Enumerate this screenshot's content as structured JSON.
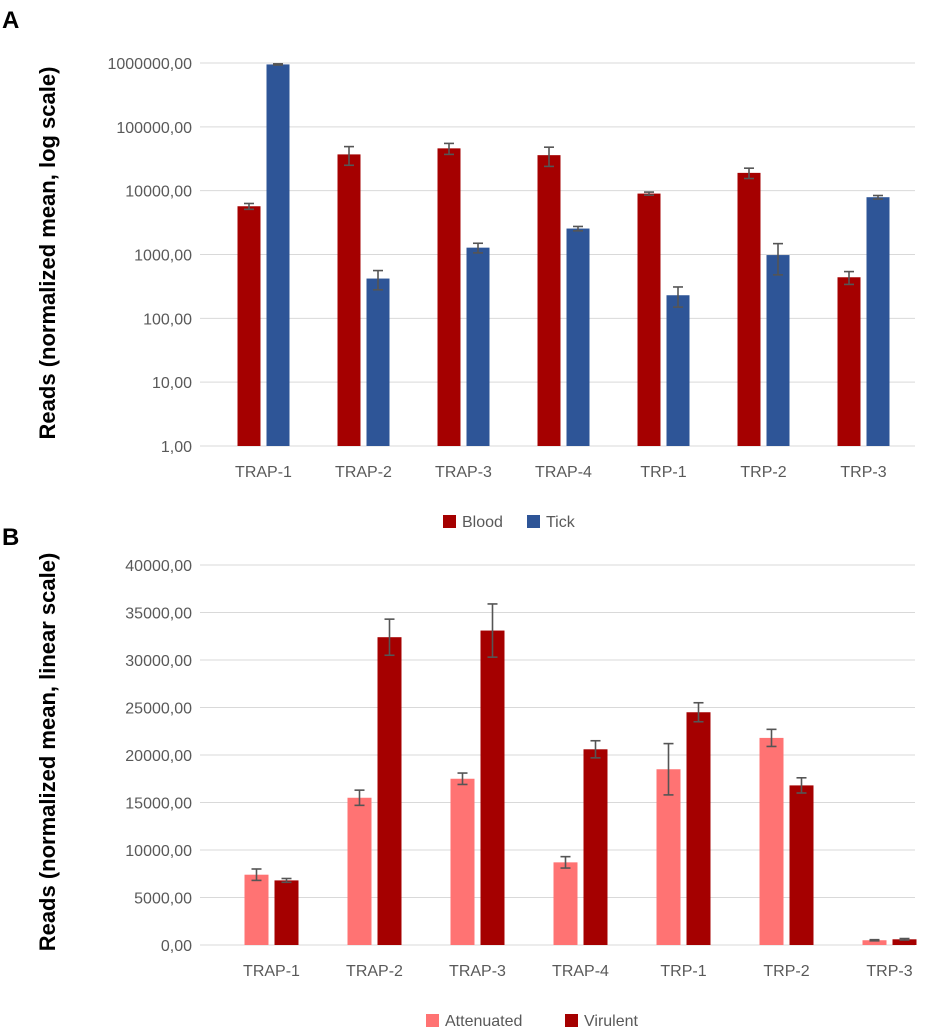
{
  "chart_data": [
    {
      "panel": "A",
      "type": "bar",
      "scale": "log",
      "ylabel": "Reads (normalized mean, log scale)",
      "categories": [
        "TRAP-1",
        "TRAP-2",
        "TRAP-3",
        "TRAP-4",
        "TRP-1",
        "TRP-2",
        "TRP-3"
      ],
      "yticks": [
        1,
        10,
        100,
        1000,
        10000,
        100000,
        1000000
      ],
      "ytick_labels": [
        "1,00",
        "10,00",
        "100,00",
        "1000,00",
        "10000,00",
        "100000,00",
        "1000000,00"
      ],
      "ylim": [
        1,
        1000000
      ],
      "series": [
        {
          "name": "Blood",
          "color": "#a50000",
          "values": [
            5700,
            37000,
            46000,
            36000,
            9000,
            19000,
            440
          ],
          "errors": [
            600,
            12000,
            9000,
            12000,
            500,
            3500,
            100
          ]
        },
        {
          "name": "Tick",
          "color": "#2e5597",
          "values": [
            950000,
            420,
            1280,
            2550,
            230,
            980,
            7900
          ],
          "errors": [
            20000,
            140,
            220,
            200,
            80,
            500,
            500
          ]
        }
      ],
      "legend": [
        "Blood",
        "Tick"
      ],
      "legend_position": "bottom"
    },
    {
      "panel": "B",
      "type": "bar",
      "scale": "linear",
      "ylabel": "Reads (normalized mean, linear scale)",
      "categories": [
        "TRAP-1",
        "TRAP-2",
        "TRAP-3",
        "TRAP-4",
        "TRP-1",
        "TRP-2",
        "TRP-3"
      ],
      "yticks": [
        0,
        5000,
        10000,
        15000,
        20000,
        25000,
        30000,
        35000,
        40000
      ],
      "ytick_labels": [
        "0,00",
        "5000,00",
        "10000,00",
        "15000,00",
        "20000,00",
        "25000,00",
        "30000,00",
        "35000,00",
        "40000,00"
      ],
      "ylim": [
        0,
        40000
      ],
      "series": [
        {
          "name": "Attenuated",
          "color": "#ff7373",
          "values": [
            7400,
            15500,
            17500,
            8700,
            18500,
            21800,
            500
          ],
          "errors": [
            600,
            800,
            600,
            600,
            2700,
            900,
            60
          ]
        },
        {
          "name": "Virulent",
          "color": "#a50000",
          "values": [
            6800,
            32400,
            33100,
            20600,
            24500,
            16800,
            600
          ],
          "errors": [
            200,
            1900,
            2800,
            900,
            1000,
            800,
            80
          ]
        }
      ],
      "legend": [
        "Attenuated",
        "Virulent"
      ],
      "legend_position": "bottom"
    }
  ]
}
